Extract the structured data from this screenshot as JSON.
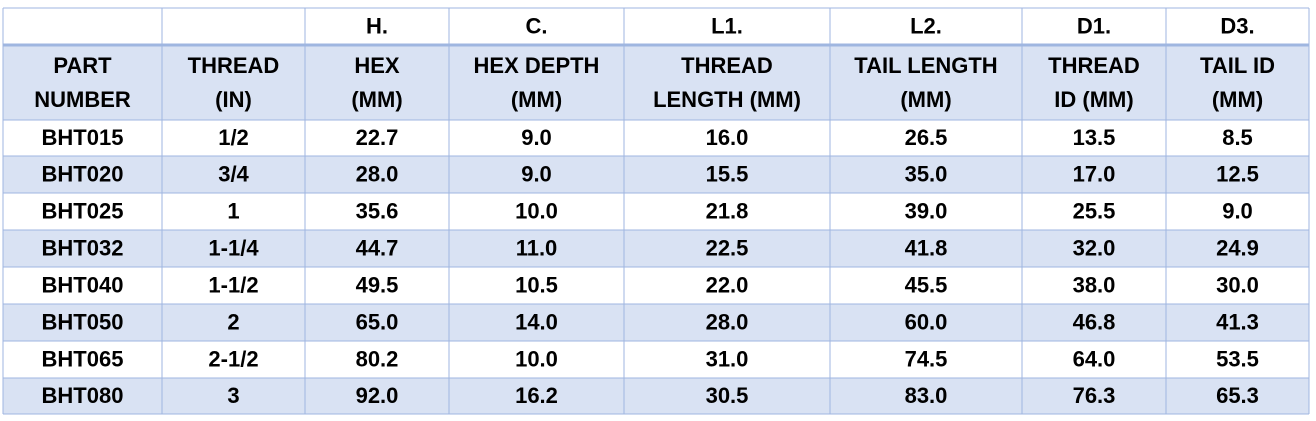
{
  "table": {
    "columns": [
      {
        "header": [
          "PART",
          "NUMBER"
        ]
      },
      {
        "header": [
          "THREAD",
          "(IN)"
        ]
      },
      {
        "code": "H.",
        "header": [
          "HEX",
          "(MM)"
        ]
      },
      {
        "code": "C.",
        "header": [
          "HEX DEPTH",
          "(MM)"
        ]
      },
      {
        "code": "L1.",
        "header": [
          "THREAD",
          "LENGTH (MM)"
        ]
      },
      {
        "code": "L2.",
        "header": [
          "TAIL LENGTH",
          "(MM)"
        ]
      },
      {
        "code": "D1.",
        "header": [
          "THREAD",
          "ID (MM)"
        ]
      },
      {
        "code": "D3.",
        "header": [
          "TAIL ID",
          "(MM)"
        ]
      }
    ],
    "rows": [
      [
        "BHT015",
        "1/2",
        "22.7",
        "9.0",
        "16.0",
        "26.5",
        "13.5",
        "8.5"
      ],
      [
        "BHT020",
        "3/4",
        "28.0",
        "9.0",
        "15.5",
        "35.0",
        "17.0",
        "12.5"
      ],
      [
        "BHT025",
        "1",
        "35.6",
        "10.0",
        "21.8",
        "39.0",
        "25.5",
        "9.0"
      ],
      [
        "BHT032",
        "1-1/4",
        "44.7",
        "11.0",
        "22.5",
        "41.8",
        "32.0",
        "24.9"
      ],
      [
        "BHT040",
        "1-1/2",
        "49.5",
        "10.5",
        "22.0",
        "45.5",
        "38.0",
        "30.0"
      ],
      [
        "BHT050",
        "2",
        "65.0",
        "14.0",
        "28.0",
        "60.0",
        "46.8",
        "41.3"
      ],
      [
        "BHT065",
        "2-1/2",
        "80.2",
        "10.0",
        "31.0",
        "74.5",
        "64.0",
        "53.5"
      ],
      [
        "BHT080",
        "3",
        "92.0",
        "16.2",
        "30.5",
        "83.0",
        "76.3",
        "65.3"
      ]
    ]
  }
}
